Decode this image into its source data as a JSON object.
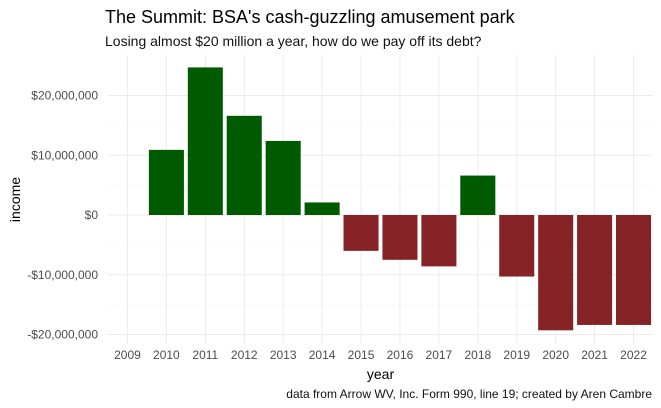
{
  "chart_data": {
    "type": "bar",
    "title": "The Summit: BSA's cash-guzzling amusement park",
    "subtitle": "Losing almost $20 million a year, how do we pay off its debt?",
    "caption": "data from Arrow WV, Inc. Form 990, line 19; created by Aren Cambre",
    "xlabel": "year",
    "ylabel": "income",
    "categories": [
      "2009",
      "2010",
      "2011",
      "2012",
      "2013",
      "2014",
      "2015",
      "2016",
      "2017",
      "2018",
      "2019",
      "2020",
      "2021",
      "2022"
    ],
    "values": [
      0,
      10900000,
      24700000,
      16600000,
      12400000,
      2100000,
      -6000000,
      -7500000,
      -8600000,
      6600000,
      -10300000,
      -19300000,
      -18400000,
      -18400000
    ],
    "ylim": [
      -21000000,
      27000000
    ],
    "yticks": [
      -20000000,
      -10000000,
      0,
      10000000,
      20000000
    ],
    "ytick_labels": [
      "-$20,000,000",
      "-$10,000,000",
      "$0",
      "$10,000,000",
      "$20,000,000"
    ],
    "colors": {
      "positive": "#005a00",
      "negative": "#852326",
      "grid_major": "#ebebeb",
      "grid_minor": "#f5f5f5",
      "axis_text": "#4d4d4d"
    },
    "grid": true,
    "legend": "none"
  }
}
